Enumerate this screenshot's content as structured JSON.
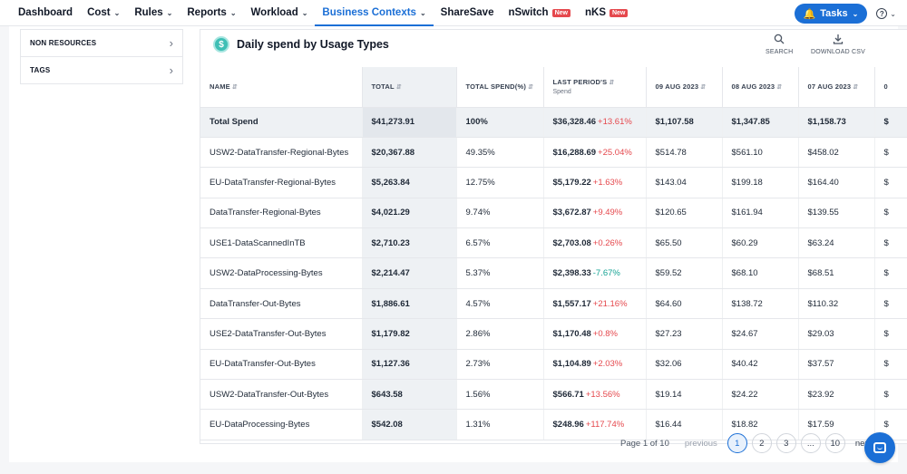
{
  "nav": {
    "items": [
      {
        "label": "Dashboard",
        "chevron": false,
        "badge": "",
        "active": false
      },
      {
        "label": "Cost",
        "chevron": true,
        "badge": "",
        "active": false
      },
      {
        "label": "Rules",
        "chevron": true,
        "badge": "",
        "active": false
      },
      {
        "label": "Reports",
        "chevron": true,
        "badge": "",
        "active": false
      },
      {
        "label": "Workload",
        "chevron": true,
        "badge": "",
        "active": false
      },
      {
        "label": "Business Contexts",
        "chevron": true,
        "badge": "",
        "active": true
      },
      {
        "label": "ShareSave",
        "chevron": false,
        "badge": "",
        "active": false
      },
      {
        "label": "nSwitch",
        "chevron": false,
        "badge": "New",
        "active": false
      },
      {
        "label": "nKS",
        "chevron": false,
        "badge": "New",
        "active": false
      }
    ],
    "tasks_label": "Tasks",
    "help_label": "?"
  },
  "filters": [
    {
      "label": "NON RESOURCES"
    },
    {
      "label": "TAGS"
    }
  ],
  "card": {
    "icon": "$",
    "title": "Daily spend by Usage Types",
    "search_label": "SEARCH",
    "download_label": "DOWNLOAD CSV"
  },
  "table": {
    "headers": {
      "name": "NAME",
      "total": "TOTAL",
      "total_pct": "TOTAL SPEND(%)",
      "last": "LAST PERIOD'S",
      "last_sub": "Spend",
      "d1": "09 AUG 2023",
      "d2": "08 AUG 2023",
      "d3": "07 AUG 2023",
      "d4": "0"
    },
    "rows": [
      {
        "name": "Total Spend",
        "total": "$41,273.91",
        "pct": "100%",
        "last": "$36,328.46",
        "change": "+13.61%",
        "dir": "up",
        "d1": "$1,107.58",
        "d2": "$1,347.85",
        "d3": "$1,158.73",
        "d4": "$"
      },
      {
        "name": "USW2-DataTransfer-Regional-Bytes",
        "total": "$20,367.88",
        "pct": "49.35%",
        "last": "$16,288.69",
        "change": "+25.04%",
        "dir": "up",
        "d1": "$514.78",
        "d2": "$561.10",
        "d3": "$458.02",
        "d4": "$"
      },
      {
        "name": "EU-DataTransfer-Regional-Bytes",
        "total": "$5,263.84",
        "pct": "12.75%",
        "last": "$5,179.22",
        "change": "+1.63%",
        "dir": "up",
        "d1": "$143.04",
        "d2": "$199.18",
        "d3": "$164.40",
        "d4": "$"
      },
      {
        "name": "DataTransfer-Regional-Bytes",
        "total": "$4,021.29",
        "pct": "9.74%",
        "last": "$3,672.87",
        "change": "+9.49%",
        "dir": "up",
        "d1": "$120.65",
        "d2": "$161.94",
        "d3": "$139.55",
        "d4": "$"
      },
      {
        "name": "USE1-DataScannedInTB",
        "total": "$2,710.23",
        "pct": "6.57%",
        "last": "$2,703.08",
        "change": "+0.26%",
        "dir": "up",
        "d1": "$65.50",
        "d2": "$60.29",
        "d3": "$63.24",
        "d4": "$"
      },
      {
        "name": "USW2-DataProcessing-Bytes",
        "total": "$2,214.47",
        "pct": "5.37%",
        "last": "$2,398.33",
        "change": "-7.67%",
        "dir": "down",
        "d1": "$59.52",
        "d2": "$68.10",
        "d3": "$68.51",
        "d4": "$"
      },
      {
        "name": "DataTransfer-Out-Bytes",
        "total": "$1,886.61",
        "pct": "4.57%",
        "last": "$1,557.17",
        "change": "+21.16%",
        "dir": "up",
        "d1": "$64.60",
        "d2": "$138.72",
        "d3": "$110.32",
        "d4": "$"
      },
      {
        "name": "USE2-DataTransfer-Out-Bytes",
        "total": "$1,179.82",
        "pct": "2.86%",
        "last": "$1,170.48",
        "change": "+0.8%",
        "dir": "up",
        "d1": "$27.23",
        "d2": "$24.67",
        "d3": "$29.03",
        "d4": "$"
      },
      {
        "name": "EU-DataTransfer-Out-Bytes",
        "total": "$1,127.36",
        "pct": "2.73%",
        "last": "$1,104.89",
        "change": "+2.03%",
        "dir": "up",
        "d1": "$32.06",
        "d2": "$40.42",
        "d3": "$37.57",
        "d4": "$"
      },
      {
        "name": "USW2-DataTransfer-Out-Bytes",
        "total": "$643.58",
        "pct": "1.56%",
        "last": "$566.71",
        "change": "+13.56%",
        "dir": "up",
        "d1": "$19.14",
        "d2": "$24.22",
        "d3": "$23.92",
        "d4": "$"
      },
      {
        "name": "EU-DataProcessing-Bytes",
        "total": "$542.08",
        "pct": "1.31%",
        "last": "$248.96",
        "change": "+117.74%",
        "dir": "up",
        "d1": "$16.44",
        "d2": "$18.82",
        "d3": "$17.59",
        "d4": "$"
      }
    ]
  },
  "pagination": {
    "info": "Page 1 of 10",
    "previous": "previous",
    "pages": [
      "1",
      "2",
      "3",
      "...",
      "10"
    ],
    "current": "1",
    "next": "next"
  },
  "colors": {
    "accent": "#1b6fd6",
    "increase": "#e5484d",
    "decrease": "#16a394",
    "icon_teal": "#3fbfb5"
  }
}
